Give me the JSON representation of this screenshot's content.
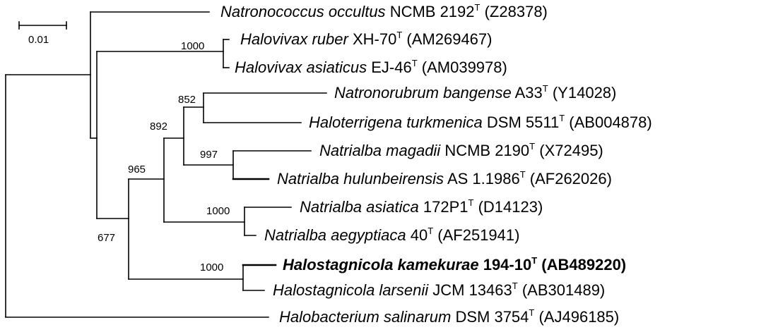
{
  "scale_bar": {
    "label": "0.01"
  },
  "taxa": [
    {
      "id": "t1",
      "name": "Natronococcus occultus",
      "strain": "NCMB 2192",
      "sup": "T",
      "accession": "(Z28378)",
      "bold": false
    },
    {
      "id": "t2",
      "name": "Halovivax ruber",
      "strain": "XH-70",
      "sup": "T",
      "accession": "(AM269467)",
      "bold": false
    },
    {
      "id": "t3",
      "name": "Halovivax asiaticus",
      "strain": "EJ-46",
      "sup": "T",
      "accession": "(AM039978)",
      "bold": false
    },
    {
      "id": "t4",
      "name": "Natronorubrum bangense",
      "strain": "A33",
      "sup": "T",
      "accession": "(Y14028)",
      "bold": false
    },
    {
      "id": "t5",
      "name": "Haloterrigena turkmenica",
      "strain": "DSM 5511",
      "sup": "T",
      "accession": "(AB004878)",
      "bold": false
    },
    {
      "id": "t6",
      "name": "Natrialba magadii",
      "strain": "NCMB 2190",
      "sup": "T",
      "accession": "(X72495)",
      "bold": false
    },
    {
      "id": "t7",
      "name": "Natrialba hulunbeirensis",
      "strain": "AS 1.1986",
      "sup": "T",
      "accession": "(AF262026)",
      "bold": false
    },
    {
      "id": "t8",
      "name": "Natrialba asiatica",
      "strain": "172P1",
      "sup": "T",
      "accession": "(D14123)",
      "bold": false
    },
    {
      "id": "t9",
      "name": "Natrialba aegyptiaca",
      "strain": "40",
      "sup": "T",
      "accession": "(AF251941)",
      "bold": false
    },
    {
      "id": "t10",
      "name": "Halostagnicola kamekurae",
      "strain": "194-10",
      "sup": "T",
      "accession": "(AB489220)",
      "bold": true
    },
    {
      "id": "t11",
      "name": "Halostagnicola larsenii",
      "strain": "JCM 13463",
      "sup": "T",
      "accession": "(AB301489)",
      "bold": false
    },
    {
      "id": "t12",
      "name": "Halobacterium salinarum",
      "strain": "DSM 3754",
      "sup": "T",
      "accession": "(AJ496185)",
      "bold": false
    }
  ],
  "bootstrap": [
    {
      "id": "b_halovivax",
      "value": "1000"
    },
    {
      "id": "b_852",
      "value": "852"
    },
    {
      "id": "b_892",
      "value": "892"
    },
    {
      "id": "b_997",
      "value": "997"
    },
    {
      "id": "b_965",
      "value": "965"
    },
    {
      "id": "b_natrialba_asiatica",
      "value": "1000"
    },
    {
      "id": "b_677",
      "value": "677"
    },
    {
      "id": "b_halostagnicola",
      "value": "1000"
    }
  ]
}
